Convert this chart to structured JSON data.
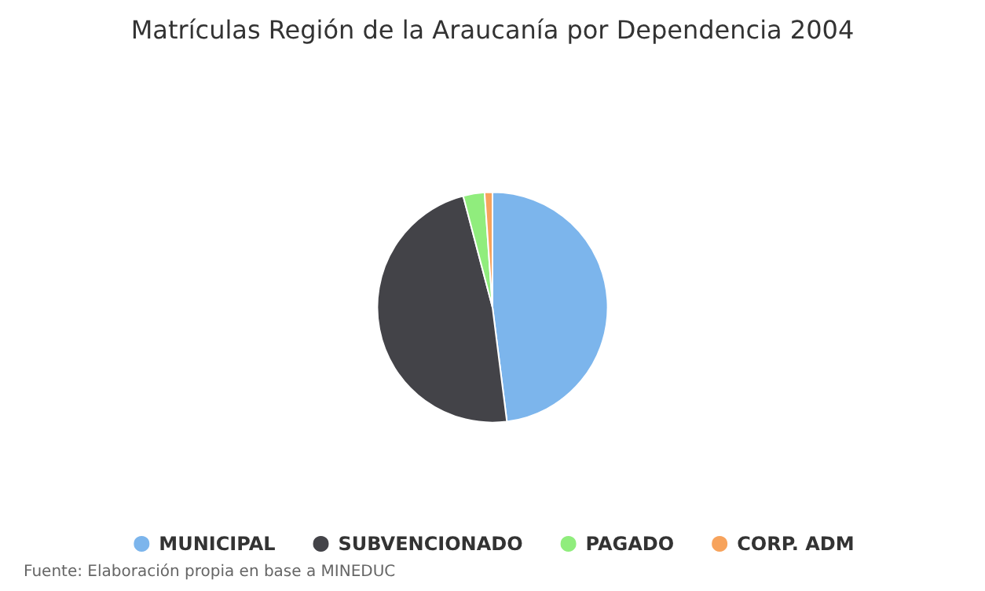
{
  "chart_data": {
    "type": "pie",
    "title": "Matrículas Región de la Araucanía por Dependencia 2004",
    "categories": [
      "MUNICIPAL",
      "SUBVENCIONADO",
      "PAGADO",
      "CORP. ADM"
    ],
    "values": [
      48.0,
      47.9,
      3.0,
      1.1
    ],
    "colors": [
      "#7cb5ec",
      "#434348",
      "#90ed7d",
      "#f7a35c"
    ],
    "legend": "bottom",
    "annotations": [
      "Fuente: Elaboración propia en base a MINEDUC"
    ]
  }
}
